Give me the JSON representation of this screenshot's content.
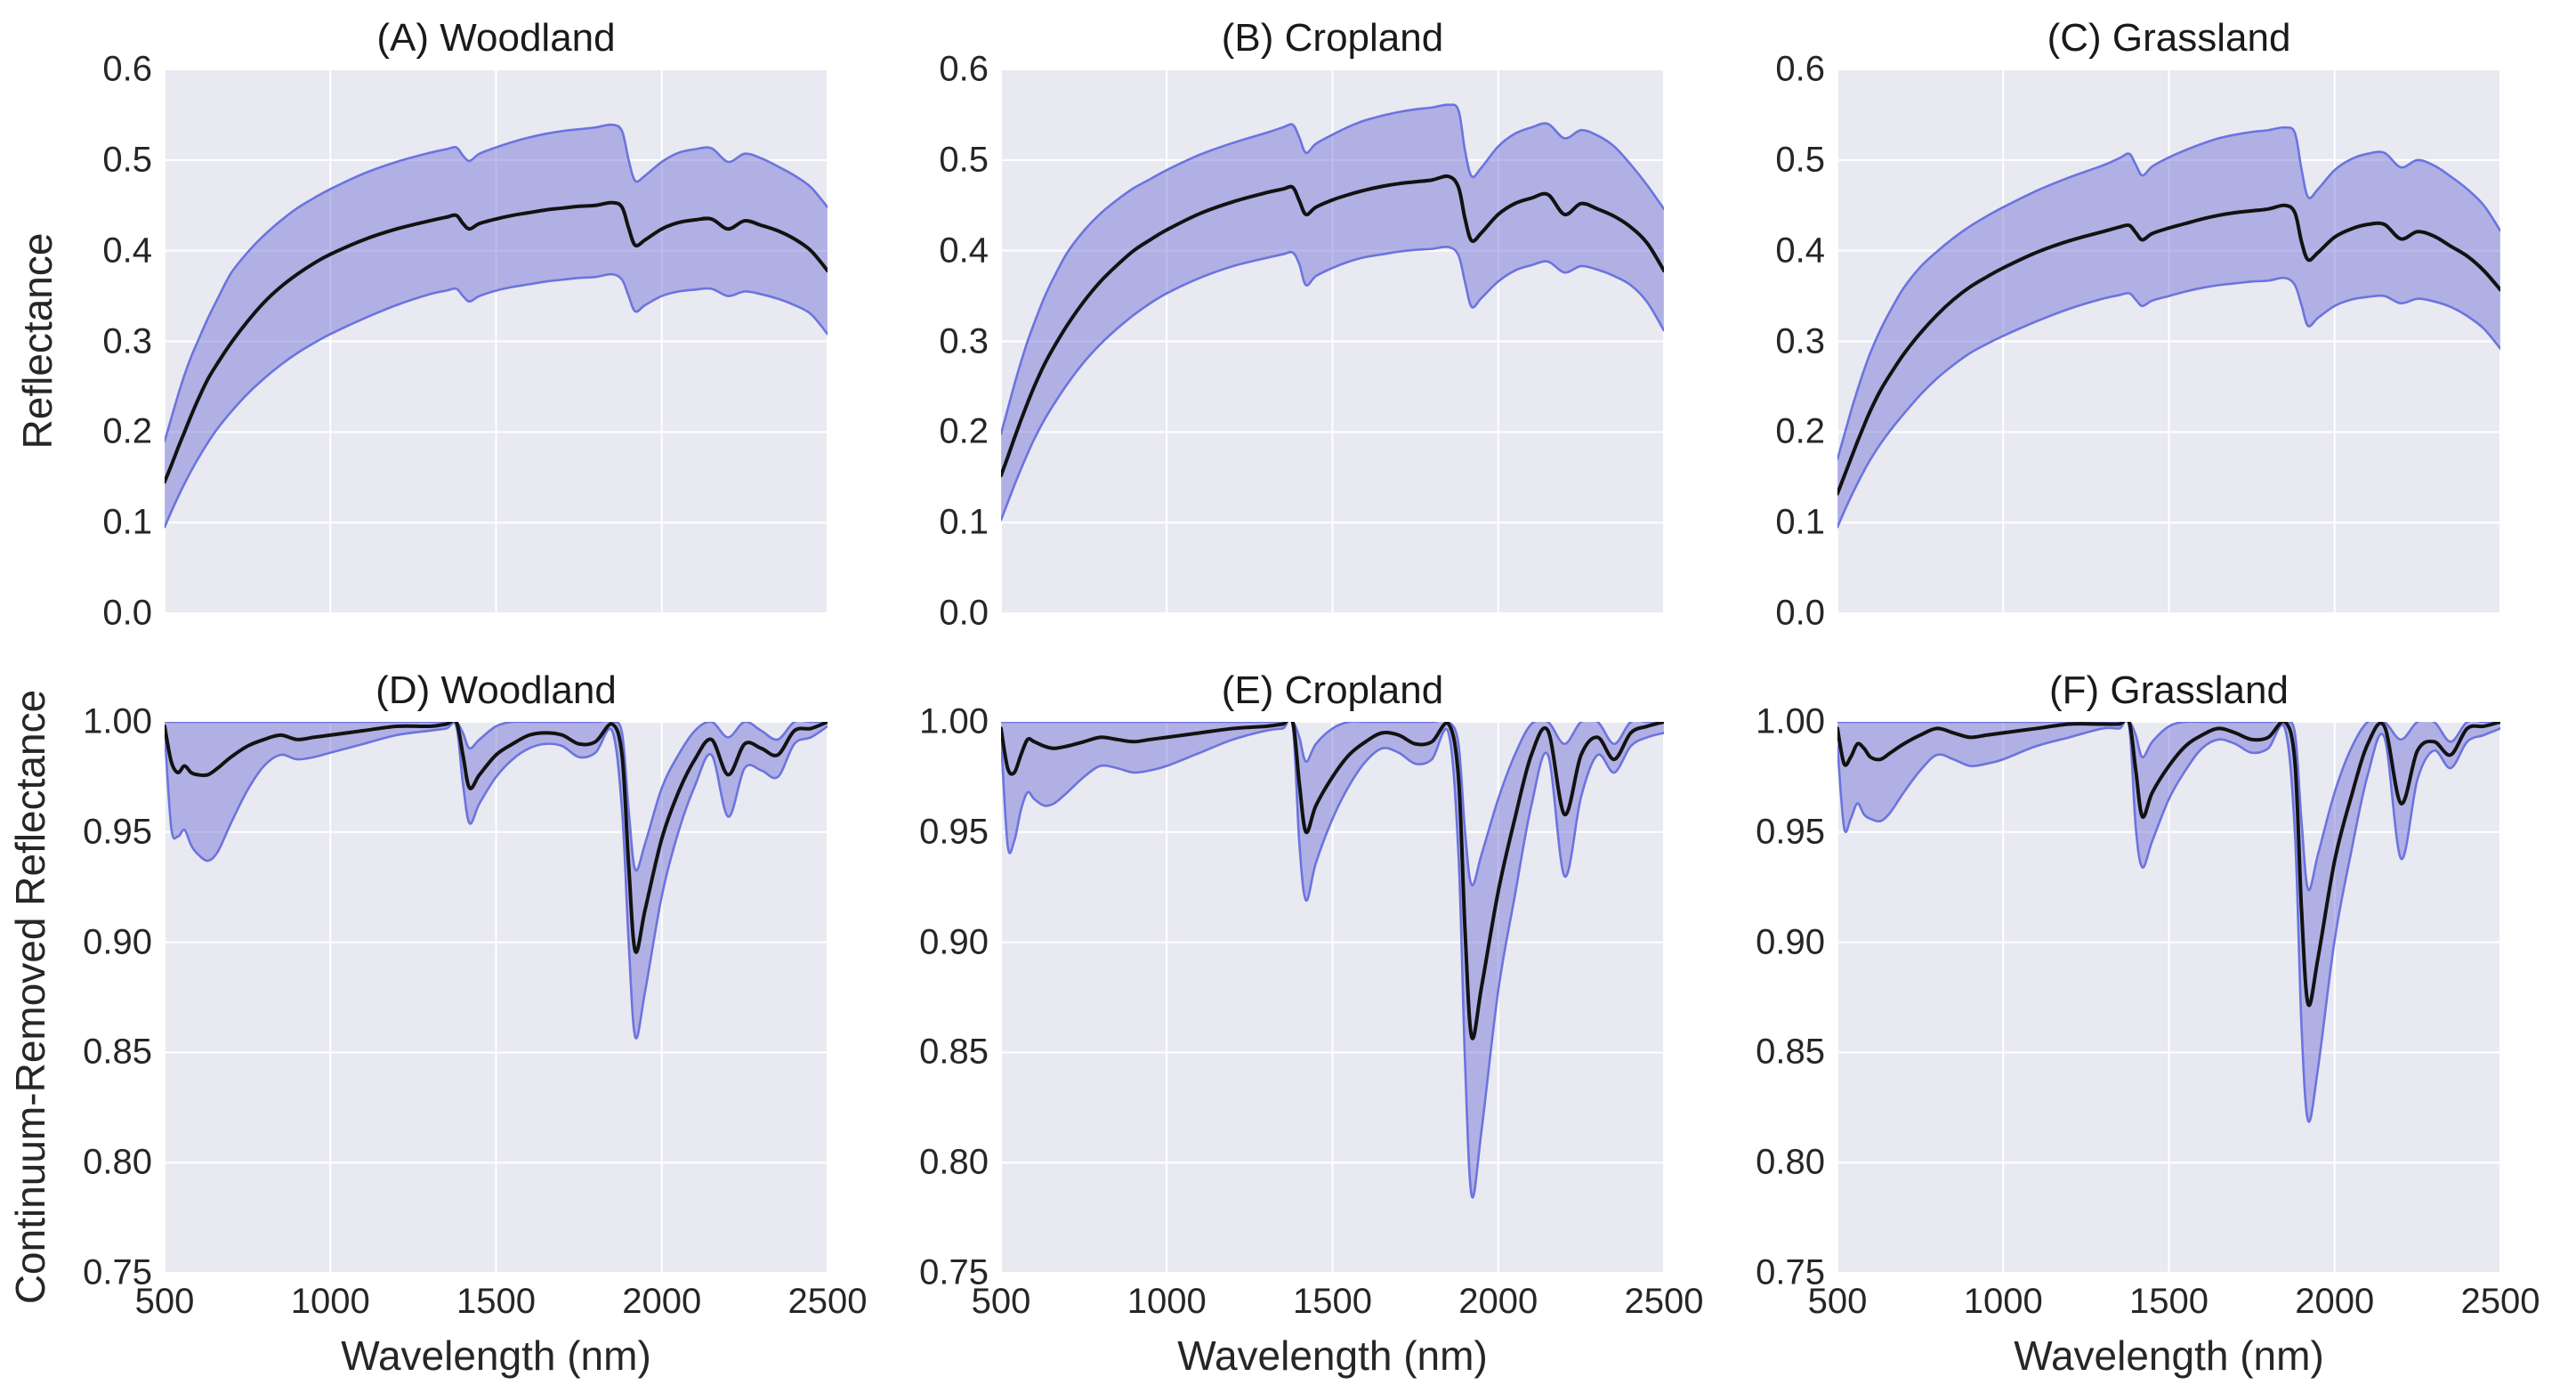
{
  "colors": {
    "page_bg": "#ffffff",
    "plot_bg": "#e9e9f1",
    "grid": "#ffffff",
    "band_fill": "rgba(116,116,214,0.48)",
    "band_edge": "#6b74de",
    "mean_line": "#121212",
    "text": "#262626"
  },
  "chart_data": {
    "type": "line",
    "description": "Mean spectra (black line) with min-max/uncertainty band (purple fill with blue edges) for three land-cover classes; top row raw reflectance, bottom row continuum-removed reflectance.",
    "x_label": "Wavelength (nm)",
    "x_ticks": [
      500,
      1000,
      1500,
      2000,
      2500
    ],
    "xlim": [
      500,
      2500
    ],
    "grid": true,
    "legend": false,
    "x": [
      500,
      520,
      540,
      560,
      580,
      600,
      630,
      660,
      700,
      750,
      800,
      850,
      900,
      950,
      1000,
      1100,
      1200,
      1300,
      1350,
      1380,
      1400,
      1420,
      1450,
      1500,
      1550,
      1600,
      1650,
      1700,
      1750,
      1800,
      1850,
      1880,
      1900,
      1920,
      1950,
      2000,
      2050,
      2100,
      2150,
      2200,
      2250,
      2300,
      2350,
      2400,
      2450,
      2500
    ],
    "rows": [
      {
        "y_label": "Reflectance",
        "ylim": [
          0.0,
          0.6
        ],
        "y_ticks": [
          "0.0",
          "0.1",
          "0.2",
          "0.3",
          "0.4",
          "0.5",
          "0.6"
        ],
        "show_x_tick_labels": false,
        "panels": [
          {
            "title": "(A) Woodland",
            "mean": [
              0.145,
              0.163,
              0.182,
              0.2,
              0.218,
              0.235,
              0.258,
              0.276,
              0.298,
              0.322,
              0.343,
              0.36,
              0.374,
              0.386,
              0.396,
              0.412,
              0.424,
              0.433,
              0.437,
              0.439,
              0.43,
              0.424,
              0.43,
              0.435,
              0.439,
              0.442,
              0.445,
              0.447,
              0.449,
              0.45,
              0.453,
              0.448,
              0.425,
              0.406,
              0.412,
              0.424,
              0.431,
              0.434,
              0.435,
              0.424,
              0.433,
              0.428,
              0.422,
              0.413,
              0.4,
              0.378
            ],
            "upper": [
              0.19,
              0.215,
              0.24,
              0.263,
              0.283,
              0.3,
              0.325,
              0.347,
              0.375,
              0.398,
              0.417,
              0.433,
              0.447,
              0.458,
              0.468,
              0.485,
              0.498,
              0.508,
              0.512,
              0.514,
              0.505,
              0.499,
              0.507,
              0.514,
              0.52,
              0.525,
              0.529,
              0.532,
              0.534,
              0.536,
              0.539,
              0.532,
              0.5,
              0.477,
              0.483,
              0.498,
              0.508,
              0.512,
              0.513,
              0.498,
              0.507,
              0.502,
              0.493,
              0.483,
              0.47,
              0.448
            ],
            "lower": [
              0.095,
              0.112,
              0.128,
              0.143,
              0.157,
              0.17,
              0.188,
              0.204,
              0.222,
              0.242,
              0.259,
              0.274,
              0.287,
              0.298,
              0.308,
              0.325,
              0.34,
              0.352,
              0.356,
              0.358,
              0.35,
              0.344,
              0.35,
              0.356,
              0.36,
              0.363,
              0.366,
              0.368,
              0.37,
              0.371,
              0.374,
              0.368,
              0.35,
              0.333,
              0.34,
              0.35,
              0.355,
              0.357,
              0.358,
              0.35,
              0.355,
              0.352,
              0.347,
              0.34,
              0.33,
              0.308
            ]
          },
          {
            "title": "(B) Cropland",
            "mean": [
              0.152,
              0.172,
              0.193,
              0.213,
              0.232,
              0.25,
              0.274,
              0.294,
              0.318,
              0.344,
              0.366,
              0.384,
              0.4,
              0.412,
              0.423,
              0.441,
              0.454,
              0.464,
              0.468,
              0.47,
              0.455,
              0.44,
              0.448,
              0.456,
              0.462,
              0.467,
              0.471,
              0.474,
              0.476,
              0.478,
              0.482,
              0.47,
              0.435,
              0.411,
              0.42,
              0.44,
              0.452,
              0.458,
              0.462,
              0.44,
              0.452,
              0.446,
              0.438,
              0.426,
              0.408,
              0.378
            ],
            "upper": [
              0.198,
              0.225,
              0.252,
              0.277,
              0.3,
              0.32,
              0.348,
              0.371,
              0.398,
              0.422,
              0.441,
              0.456,
              0.469,
              0.479,
              0.489,
              0.506,
              0.519,
              0.53,
              0.536,
              0.539,
              0.525,
              0.508,
              0.518,
              0.528,
              0.537,
              0.544,
              0.549,
              0.553,
              0.556,
              0.558,
              0.561,
              0.555,
              0.51,
              0.482,
              0.492,
              0.515,
              0.529,
              0.536,
              0.54,
              0.524,
              0.533,
              0.527,
              0.515,
              0.495,
              0.472,
              0.446
            ],
            "lower": [
              0.103,
              0.122,
              0.141,
              0.159,
              0.176,
              0.192,
              0.213,
              0.231,
              0.253,
              0.277,
              0.297,
              0.314,
              0.329,
              0.342,
              0.353,
              0.37,
              0.383,
              0.392,
              0.396,
              0.398,
              0.385,
              0.362,
              0.372,
              0.381,
              0.388,
              0.393,
              0.396,
              0.399,
              0.401,
              0.402,
              0.404,
              0.395,
              0.365,
              0.338,
              0.348,
              0.366,
              0.378,
              0.384,
              0.388,
              0.376,
              0.383,
              0.379,
              0.372,
              0.362,
              0.343,
              0.312
            ]
          },
          {
            "title": "(C) Grassland",
            "mean": [
              0.132,
              0.151,
              0.17,
              0.189,
              0.207,
              0.224,
              0.246,
              0.264,
              0.286,
              0.309,
              0.329,
              0.346,
              0.36,
              0.371,
              0.381,
              0.398,
              0.411,
              0.421,
              0.426,
              0.428,
              0.42,
              0.412,
              0.419,
              0.425,
              0.43,
              0.435,
              0.439,
              0.442,
              0.444,
              0.446,
              0.45,
              0.442,
              0.41,
              0.39,
              0.398,
              0.415,
              0.424,
              0.429,
              0.429,
              0.413,
              0.421,
              0.416,
              0.405,
              0.394,
              0.378,
              0.357
            ],
            "upper": [
              0.17,
              0.196,
              0.222,
              0.246,
              0.268,
              0.288,
              0.313,
              0.334,
              0.359,
              0.382,
              0.399,
              0.414,
              0.427,
              0.438,
              0.448,
              0.466,
              0.481,
              0.494,
              0.502,
              0.507,
              0.495,
              0.483,
              0.493,
              0.503,
              0.511,
              0.518,
              0.524,
              0.528,
              0.531,
              0.533,
              0.536,
              0.53,
              0.49,
              0.459,
              0.468,
              0.489,
              0.501,
              0.507,
              0.508,
              0.492,
              0.5,
              0.494,
              0.482,
              0.468,
              0.45,
              0.422
            ],
            "lower": [
              0.095,
              0.112,
              0.128,
              0.143,
              0.157,
              0.17,
              0.187,
              0.202,
              0.22,
              0.241,
              0.259,
              0.274,
              0.287,
              0.297,
              0.306,
              0.322,
              0.336,
              0.347,
              0.351,
              0.353,
              0.346,
              0.339,
              0.345,
              0.35,
              0.355,
              0.359,
              0.362,
              0.364,
              0.366,
              0.367,
              0.37,
              0.362,
              0.34,
              0.317,
              0.326,
              0.339,
              0.346,
              0.349,
              0.35,
              0.342,
              0.347,
              0.344,
              0.338,
              0.328,
              0.314,
              0.292
            ]
          }
        ]
      },
      {
        "y_label": "Continuum-Removed Reflectance",
        "ylim": [
          0.75,
          1.0
        ],
        "y_ticks": [
          "0.75",
          "0.80",
          "0.85",
          "0.90",
          "0.95",
          "1.00"
        ],
        "show_x_tick_labels": true,
        "panels": [
          {
            "title": "(D) Woodland",
            "mean": [
              0.998,
              0.982,
              0.977,
              0.98,
              0.977,
              0.976,
              0.976,
              0.979,
              0.984,
              0.989,
              0.992,
              0.994,
              0.992,
              0.993,
              0.994,
              0.996,
              0.998,
              0.998,
              0.999,
              1.0,
              0.985,
              0.97,
              0.976,
              0.985,
              0.99,
              0.994,
              0.995,
              0.994,
              0.99,
              0.991,
              0.999,
              0.985,
              0.935,
              0.896,
              0.915,
              0.947,
              0.968,
              0.983,
              0.992,
              0.976,
              0.99,
              0.988,
              0.985,
              0.996,
              0.997,
              1.0
            ],
            "upper": [
              1,
              1,
              1,
              1,
              1,
              1,
              1,
              1,
              1,
              1,
              1,
              1,
              1,
              1,
              1,
              1,
              1,
              1,
              1,
              1,
              0.995,
              0.988,
              0.992,
              0.998,
              1,
              1,
              1,
              1,
              1,
              1,
              1,
              0.995,
              0.96,
              0.933,
              0.945,
              0.97,
              0.985,
              0.996,
              1,
              0.993,
              1,
              0.996,
              0.992,
              1,
              1,
              1
            ],
            "lower": [
              0.996,
              0.952,
              0.948,
              0.951,
              0.944,
              0.94,
              0.937,
              0.941,
              0.954,
              0.969,
              0.98,
              0.985,
              0.983,
              0.984,
              0.986,
              0.99,
              0.994,
              0.996,
              0.997,
              0.998,
              0.972,
              0.954,
              0.963,
              0.975,
              0.983,
              0.988,
              0.99,
              0.989,
              0.984,
              0.986,
              0.996,
              0.96,
              0.9,
              0.857,
              0.878,
              0.921,
              0.95,
              0.971,
              0.985,
              0.957,
              0.979,
              0.978,
              0.975,
              0.99,
              0.993,
              0.998
            ]
          },
          {
            "title": "(E) Cropland",
            "mean": [
              0.997,
              0.979,
              0.977,
              0.985,
              0.992,
              0.991,
              0.989,
              0.988,
              0.989,
              0.991,
              0.993,
              0.992,
              0.991,
              0.992,
              0.993,
              0.995,
              0.997,
              0.998,
              0.999,
              1.0,
              0.972,
              0.95,
              0.962,
              0.975,
              0.985,
              0.991,
              0.995,
              0.994,
              0.99,
              0.991,
              0.999,
              0.975,
              0.905,
              0.857,
              0.88,
              0.923,
              0.956,
              0.985,
              0.996,
              0.958,
              0.985,
              0.993,
              0.983,
              0.995,
              0.998,
              1.0
            ],
            "upper": [
              1,
              1,
              1,
              1,
              1,
              1,
              1,
              1,
              1,
              1,
              1,
              1,
              1,
              1,
              1,
              1,
              1,
              1,
              1,
              1,
              0.993,
              0.982,
              0.99,
              0.997,
              1,
              1,
              1,
              1,
              1,
              1,
              1,
              0.99,
              0.95,
              0.926,
              0.94,
              0.965,
              0.985,
              0.999,
              1,
              0.99,
              1,
              1,
              0.99,
              1,
              1,
              1
            ],
            "lower": [
              0.993,
              0.944,
              0.946,
              0.96,
              0.968,
              0.965,
              0.962,
              0.963,
              0.968,
              0.975,
              0.98,
              0.979,
              0.977,
              0.978,
              0.98,
              0.986,
              0.992,
              0.996,
              0.997,
              0.998,
              0.945,
              0.919,
              0.936,
              0.956,
              0.971,
              0.982,
              0.988,
              0.986,
              0.981,
              0.983,
              0.995,
              0.94,
              0.845,
              0.785,
              0.815,
              0.878,
              0.921,
              0.962,
              0.985,
              0.93,
              0.966,
              0.985,
              0.977,
              0.989,
              0.993,
              0.995
            ]
          },
          {
            "title": "(F) Grassland",
            "mean": [
              0.997,
              0.981,
              0.984,
              0.99,
              0.988,
              0.984,
              0.983,
              0.986,
              0.99,
              0.994,
              0.997,
              0.995,
              0.993,
              0.994,
              0.995,
              0.997,
              0.999,
              0.999,
              0.999,
              1.0,
              0.978,
              0.957,
              0.968,
              0.98,
              0.989,
              0.994,
              0.997,
              0.995,
              0.992,
              0.993,
              1.0,
              0.982,
              0.915,
              0.872,
              0.893,
              0.937,
              0.966,
              0.99,
              0.998,
              0.963,
              0.987,
              0.991,
              0.985,
              0.997,
              0.998,
              1.0
            ],
            "upper": [
              1,
              1,
              1,
              1,
              1,
              1,
              1,
              1,
              1,
              1,
              1,
              1,
              1,
              1,
              1,
              1,
              1,
              1,
              1,
              1,
              0.994,
              0.984,
              0.991,
              0.998,
              1,
              1,
              1,
              1,
              1,
              1,
              1,
              0.995,
              0.955,
              0.924,
              0.94,
              0.968,
              0.988,
              1,
              1,
              0.992,
              1,
              1,
              0.991,
              1,
              1,
              1
            ],
            "lower": [
              0.989,
              0.952,
              0.956,
              0.963,
              0.958,
              0.956,
              0.955,
              0.959,
              0.968,
              0.978,
              0.985,
              0.983,
              0.98,
              0.981,
              0.983,
              0.989,
              0.993,
              0.997,
              0.997,
              0.998,
              0.952,
              0.934,
              0.946,
              0.965,
              0.978,
              0.988,
              0.992,
              0.99,
              0.986,
              0.988,
              0.997,
              0.95,
              0.862,
              0.819,
              0.843,
              0.901,
              0.941,
              0.976,
              0.993,
              0.938,
              0.974,
              0.987,
              0.979,
              0.991,
              0.994,
              0.997
            ]
          }
        ]
      }
    ]
  }
}
